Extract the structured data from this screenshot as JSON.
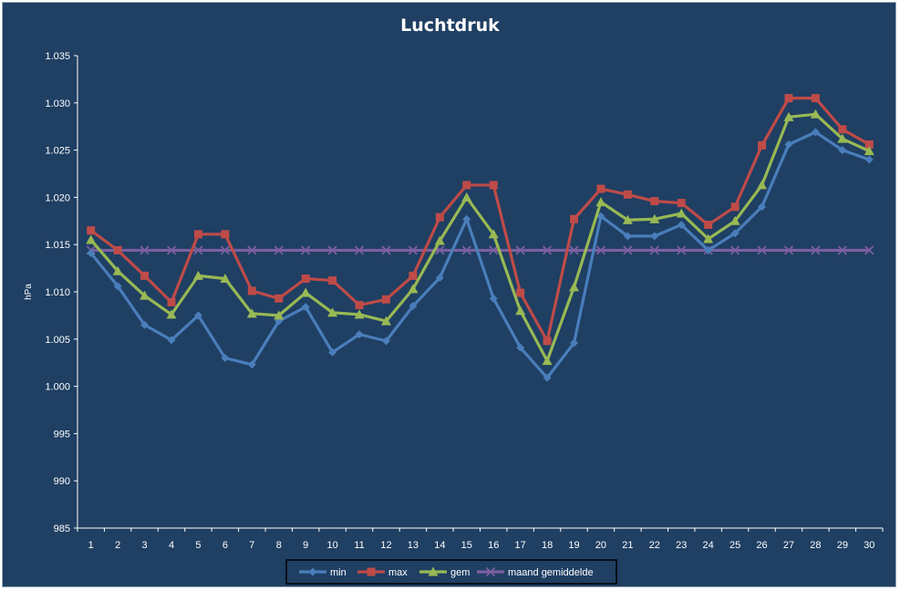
{
  "chart_data": {
    "type": "line",
    "title": "Luchtdruk",
    "xlabel": "",
    "ylabel": "hPa",
    "ylim": [
      985,
      1035
    ],
    "y_ticks": [
      "985",
      "990",
      "995",
      "1.000",
      "1.005",
      "1.010",
      "1.015",
      "1.020",
      "1.025",
      "1.030",
      "1.035"
    ],
    "categories": [
      "1",
      "2",
      "3",
      "4",
      "5",
      "6",
      "7",
      "8",
      "9",
      "10",
      "11",
      "12",
      "13",
      "14",
      "15",
      "16",
      "17",
      "18",
      "19",
      "20",
      "21",
      "22",
      "23",
      "24",
      "25",
      "26",
      "27",
      "28",
      "29",
      "30"
    ],
    "grid": false,
    "legend_position": "bottom",
    "series": [
      {
        "name": "min",
        "color": "#4a7ebb",
        "marker": "diamond",
        "values": [
          1014.1,
          1010.6,
          1006.5,
          1004.9,
          1007.5,
          1003.0,
          1002.3,
          1006.9,
          1008.4,
          1003.6,
          1005.5,
          1004.8,
          1008.5,
          1011.5,
          1017.7,
          1009.3,
          1004.1,
          1000.9,
          1004.6,
          1018.0,
          1015.9,
          1015.9,
          1017.1,
          1014.4,
          1016.2,
          1019.0,
          1025.6,
          1026.9,
          1025.0,
          1024.0
        ]
      },
      {
        "name": "max",
        "color": "#be4b48",
        "marker": "square",
        "values": [
          1016.5,
          1014.4,
          1011.7,
          1008.9,
          1016.1,
          1016.1,
          1010.1,
          1009.3,
          1011.4,
          1011.2,
          1008.6,
          1009.2,
          1011.7,
          1017.9,
          1021.3,
          1021.3,
          1009.9,
          1004.8,
          1017.7,
          1020.9,
          1020.3,
          1019.6,
          1019.4,
          1017.1,
          1019.0,
          1025.5,
          1030.5,
          1030.5,
          1027.2,
          1025.6
        ]
      },
      {
        "name": "gem",
        "color": "#98b954",
        "marker": "triangle",
        "values": [
          1015.5,
          1012.2,
          1009.6,
          1007.6,
          1011.7,
          1011.4,
          1007.7,
          1007.5,
          1009.9,
          1007.8,
          1007.6,
          1006.9,
          1010.3,
          1015.4,
          1020.0,
          1016.1,
          1008.0,
          1002.7,
          1010.5,
          1019.5,
          1017.6,
          1017.7,
          1018.3,
          1015.6,
          1017.5,
          1021.3,
          1028.5,
          1028.8,
          1026.2,
          1024.9
        ]
      },
      {
        "name": "maand gemiddelde",
        "color": "#7d5fa0",
        "marker": "x",
        "values": [
          1014.4,
          1014.4,
          1014.4,
          1014.4,
          1014.4,
          1014.4,
          1014.4,
          1014.4,
          1014.4,
          1014.4,
          1014.4,
          1014.4,
          1014.4,
          1014.4,
          1014.4,
          1014.4,
          1014.4,
          1014.4,
          1014.4,
          1014.4,
          1014.4,
          1014.4,
          1014.4,
          1014.4,
          1014.4,
          1014.4,
          1014.4,
          1014.4,
          1014.4,
          1014.4
        ]
      }
    ]
  }
}
